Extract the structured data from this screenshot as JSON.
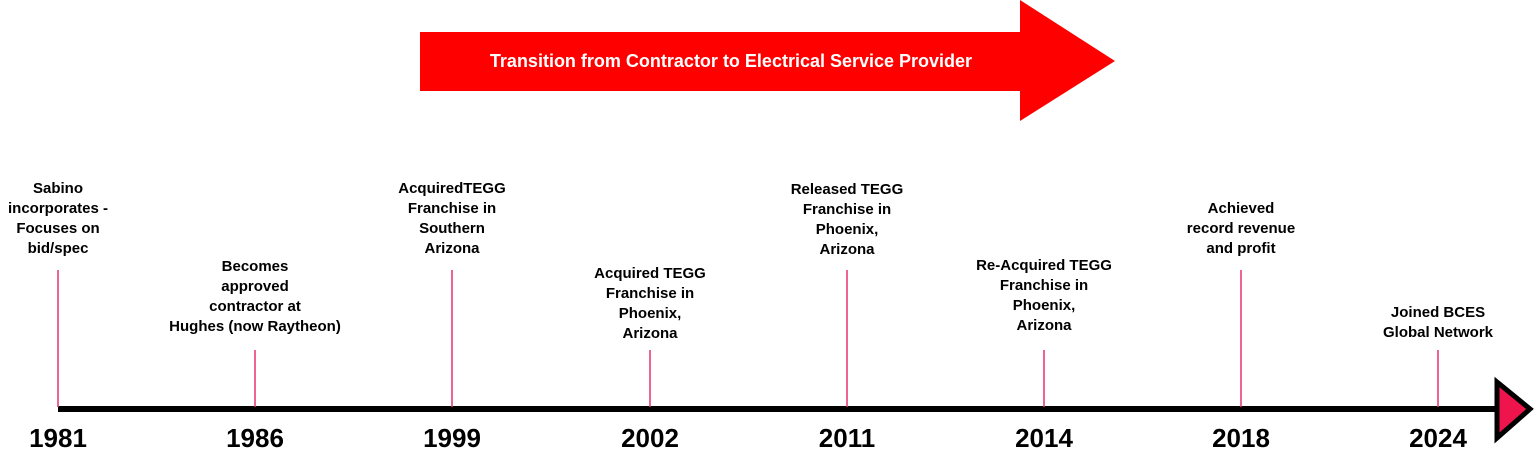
{
  "banner": {
    "text": "Transition from Contractor to Electrical Service Provider"
  },
  "events": [
    {
      "year": "1981",
      "lines": [
        "Sabino",
        "incorporates -",
        "Focuses on",
        "bid/spec"
      ]
    },
    {
      "year": "1986",
      "lines": [
        "Becomes",
        "approved",
        "contractor at",
        "Hughes (now Raytheon)"
      ]
    },
    {
      "year": "1999",
      "lines": [
        "AcquiredTEGG",
        "Franchise in",
        "Southern",
        "Arizona"
      ]
    },
    {
      "year": "2002",
      "lines": [
        "Acquired TEGG",
        "Franchise in",
        "Phoenix,",
        "Arizona"
      ]
    },
    {
      "year": "2011",
      "lines": [
        "Released TEGG",
        "Franchise in",
        "Phoenix,",
        "Arizona"
      ]
    },
    {
      "year": "2014",
      "lines": [
        "Re-Acquired TEGG",
        "Franchise in",
        "Phoenix,",
        "Arizona"
      ]
    },
    {
      "year": "2018",
      "lines": [
        "Achieved",
        "record revenue",
        "and profit"
      ]
    },
    {
      "year": "2024",
      "lines": [
        "Joined BCES",
        "Global Network"
      ]
    }
  ]
}
